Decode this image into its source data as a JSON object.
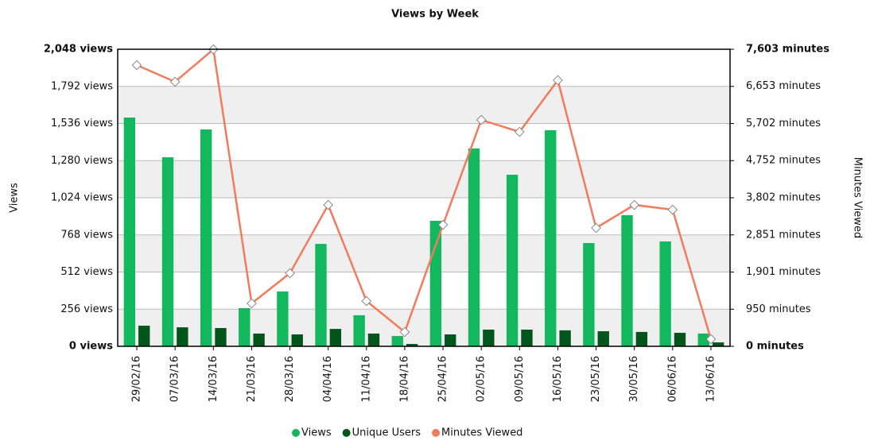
{
  "chart_data": {
    "type": "bar_line",
    "title": "Views by Week",
    "y_label": "Views",
    "y2_label": "Minutes Viewed",
    "categories": [
      "29/02/16",
      "07/03/16",
      "14/03/16",
      "21/03/16",
      "28/03/16",
      "04/04/16",
      "11/04/16",
      "18/04/16",
      "25/04/16",
      "02/05/16",
      "09/05/16",
      "16/05/16",
      "23/05/16",
      "30/05/16",
      "06/06/16",
      "13/06/16"
    ],
    "series": [
      {
        "name": "Views",
        "color": "#13b75d",
        "kind": "bar",
        "values": [
          1577,
          1303,
          1495,
          263,
          378,
          706,
          214,
          71,
          865,
          1364,
          1183,
          1490,
          712,
          904,
          723,
          88
        ]
      },
      {
        "name": "Unique Users",
        "color": "#02561c",
        "kind": "bar",
        "values": [
          142,
          131,
          126,
          88,
          82,
          120,
          88,
          16,
          82,
          115,
          115,
          110,
          104,
          99,
          93,
          27
        ]
      },
      {
        "name": "Minutes Viewed",
        "color": "#f47a5c",
        "kind": "line",
        "axis": "y2",
        "values": [
          7197,
          6770,
          7600,
          1098,
          1870,
          3619,
          1159,
          366,
          3110,
          5794,
          5489,
          6810,
          3029,
          3619,
          3497,
          183
        ]
      }
    ],
    "ylim": [
      0,
      2048
    ],
    "yticks": [
      {
        "value": 0,
        "label": "0 views"
      },
      {
        "value": 256,
        "label": "256 views"
      },
      {
        "value": 512,
        "label": "512 views"
      },
      {
        "value": 768,
        "label": "768 views"
      },
      {
        "value": 1024,
        "label": "1,024 views"
      },
      {
        "value": 1280,
        "label": "1,280 views"
      },
      {
        "value": 1536,
        "label": "1,536 views"
      },
      {
        "value": 1792,
        "label": "1,792 views"
      },
      {
        "value": 2048,
        "label": "2,048 views"
      }
    ],
    "y2lim": [
      0,
      7603
    ],
    "y2ticks": [
      {
        "value": 0,
        "label": "0 minutes"
      },
      {
        "value": 950,
        "label": "950 minutes"
      },
      {
        "value": 1901,
        "label": "1,901 minutes"
      },
      {
        "value": 2851,
        "label": "2,851 minutes"
      },
      {
        "value": 3802,
        "label": "3,802 minutes"
      },
      {
        "value": 4752,
        "label": "4,752 minutes"
      },
      {
        "value": 5702,
        "label": "5,702 minutes"
      },
      {
        "value": 6653,
        "label": "6,653 minutes"
      },
      {
        "value": 7603,
        "label": "7,603 minutes"
      }
    ],
    "grid": true,
    "legend": "bottom"
  }
}
